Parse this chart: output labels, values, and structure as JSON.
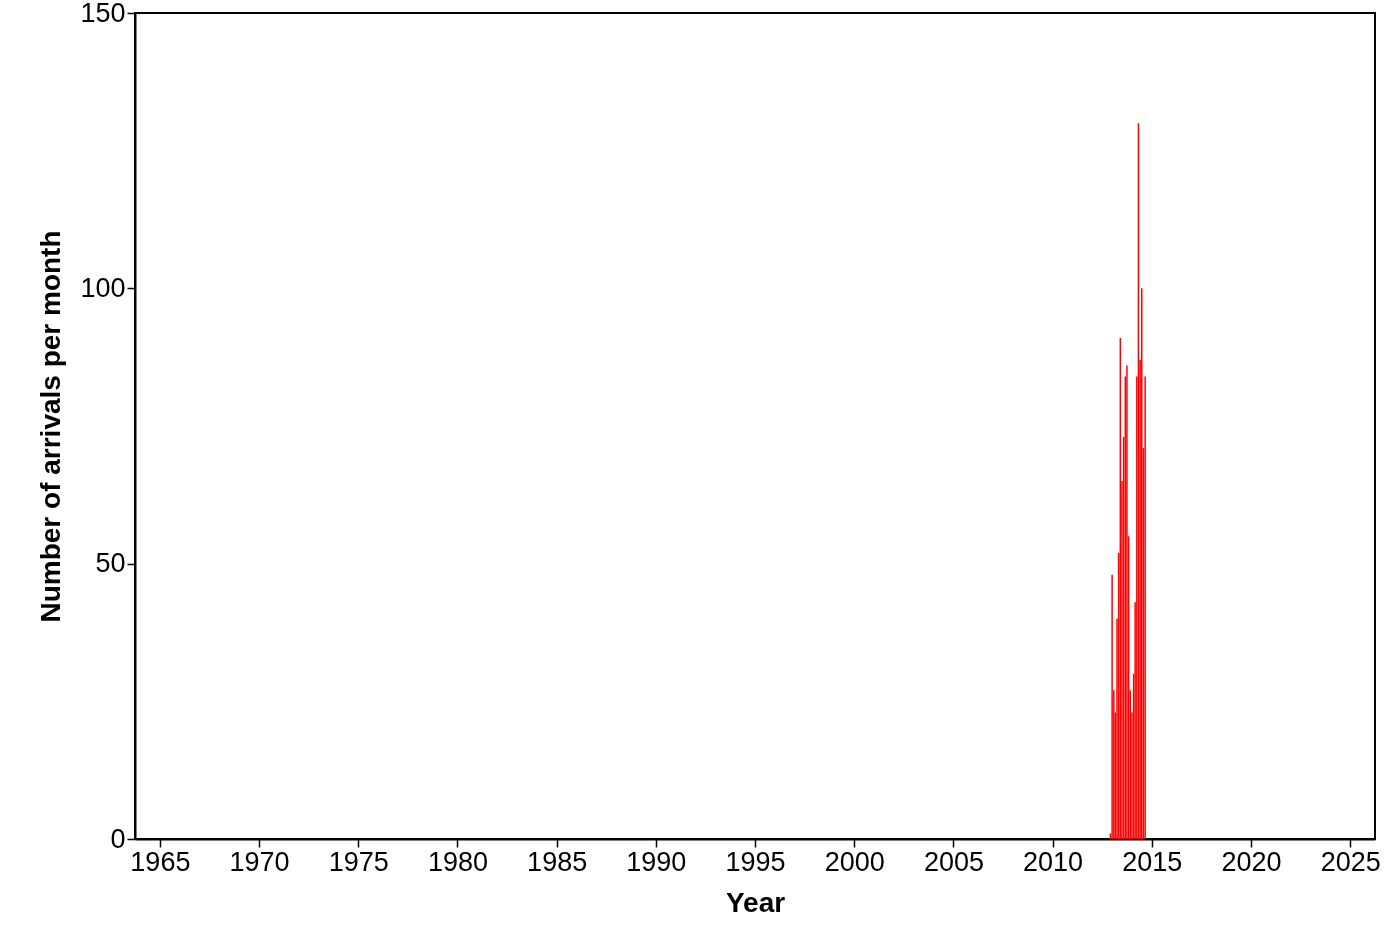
{
  "chart_data": {
    "type": "bar",
    "xlabel": "Year",
    "ylabel": "Number of arrivals per month",
    "x": [
      "2012-12",
      "2013-01",
      "2013-02",
      "2013-03",
      "2013-04",
      "2013-05",
      "2013-06",
      "2013-07",
      "2013-08",
      "2013-09",
      "2013-10",
      "2013-11",
      "2013-12",
      "2014-01",
      "2014-02",
      "2014-03",
      "2014-04",
      "2014-05",
      "2014-06",
      "2014-07",
      "2014-08",
      "2014-09"
    ],
    "values": [
      1,
      48,
      27,
      23,
      40,
      52,
      91,
      65,
      73,
      84,
      86,
      55,
      27,
      23,
      30,
      43,
      84,
      130,
      87,
      100,
      71,
      84
    ],
    "color": "#ff0000",
    "xlim": [
      "1964",
      "2026"
    ],
    "xticks": [
      "1965",
      "1970",
      "1975",
      "1980",
      "1985",
      "1990",
      "1995",
      "2000",
      "2005",
      "2010",
      "2015",
      "2020",
      "2025"
    ],
    "ylim": [
      0,
      150
    ],
    "yticks": [
      0,
      50,
      100,
      150
    ],
    "grid": false
  }
}
